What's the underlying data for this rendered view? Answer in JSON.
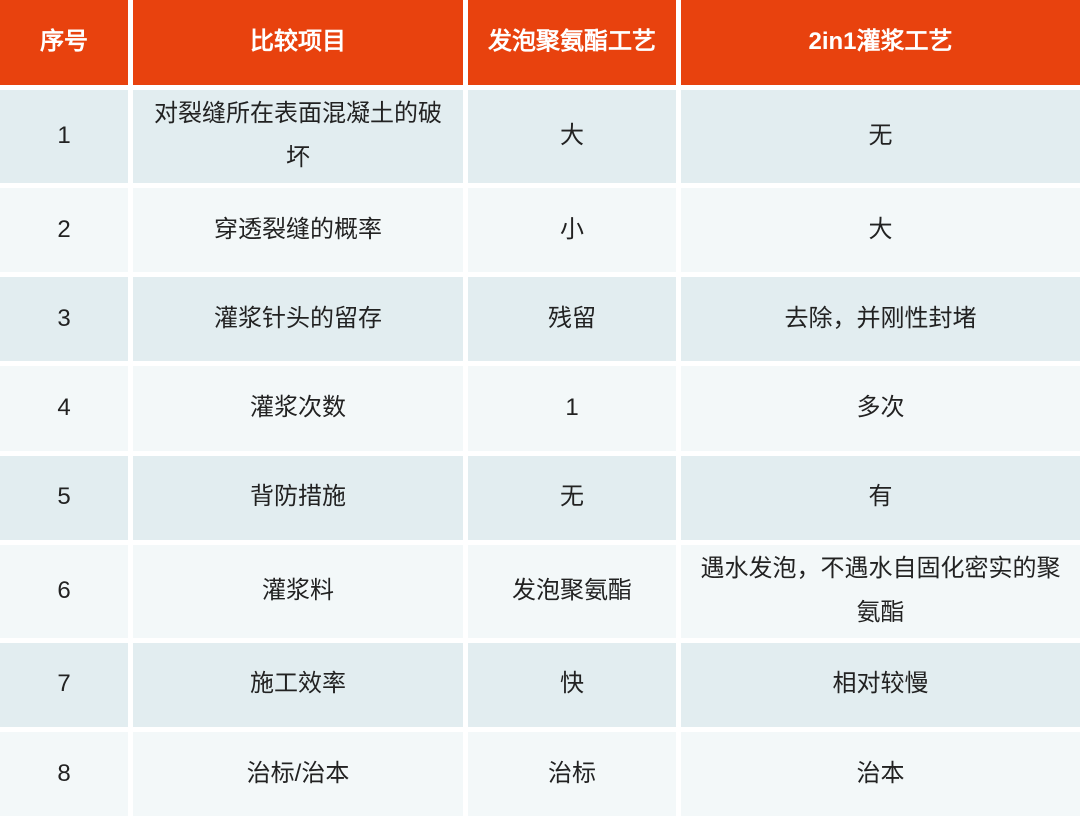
{
  "table": {
    "columns": [
      {
        "label": "序号"
      },
      {
        "label": "比较项目"
      },
      {
        "label": "发泡聚氨酯工艺"
      },
      {
        "label": "2in1灌浆工艺"
      }
    ],
    "rows": [
      {
        "no": "1",
        "item": "对裂缝所在表面混凝土的破坏",
        "pu": "大",
        "grout": "无"
      },
      {
        "no": "2",
        "item": "穿透裂缝的概率",
        "pu": "小",
        "grout": "大"
      },
      {
        "no": "3",
        "item": "灌浆针头的留存",
        "pu": "残留",
        "grout": "去除，并刚性封堵"
      },
      {
        "no": "4",
        "item": "灌浆次数",
        "pu": "1",
        "grout": "多次"
      },
      {
        "no": "5",
        "item": "背防措施",
        "pu": "无",
        "grout": "有"
      },
      {
        "no": "6",
        "item": "灌浆料",
        "pu": "发泡聚氨酯",
        "grout": "遇水发泡，不遇水自固化密实的聚氨酯"
      },
      {
        "no": "7",
        "item": "施工效率",
        "pu": "快",
        "grout": "相对较慢"
      },
      {
        "no": "8",
        "item": "治标/治本",
        "pu": "治标",
        "grout": "治本"
      }
    ],
    "colors": {
      "header_bg": "#e8420e",
      "header_text": "#ffffff",
      "row_odd_bg": "#e2edf0",
      "row_even_bg": "#f3f8f9",
      "body_text": "#222222",
      "grid": "#ffffff"
    }
  }
}
